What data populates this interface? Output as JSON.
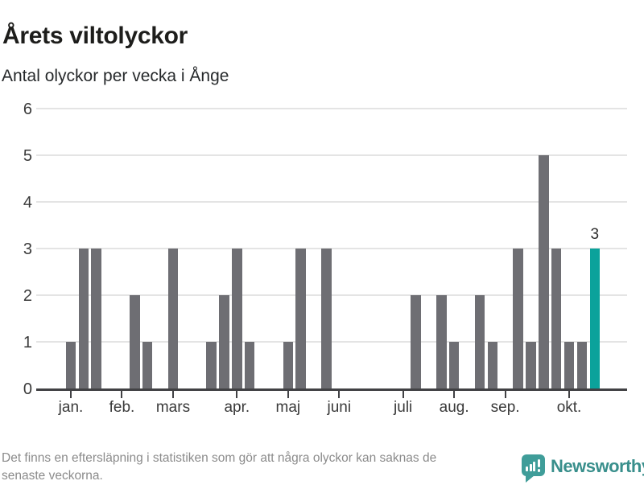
{
  "header": {
    "title": "Årets viltolyckor",
    "subtitle": "Antal olyckor per vecka i Ånge"
  },
  "chart_data": {
    "type": "bar",
    "title": "Årets viltolyckor",
    "subtitle": "Antal olyckor per vecka i Ånge",
    "x_unit": "vecka",
    "ylabel": "Antal olyckor",
    "ylim": [
      0,
      6
    ],
    "y_ticks": [
      0,
      1,
      2,
      3,
      4,
      5,
      6
    ],
    "grid": "horizontal",
    "values": [
      1,
      3,
      3,
      0,
      0,
      2,
      1,
      0,
      3,
      0,
      0,
      1,
      2,
      3,
      1,
      0,
      0,
      1,
      3,
      0,
      3,
      0,
      0,
      0,
      0,
      0,
      0,
      2,
      0,
      2,
      1,
      0,
      2,
      1,
      0,
      3,
      1,
      5,
      3,
      1,
      1,
      3
    ],
    "month_ticks": [
      {
        "label": "jan.",
        "week": 1
      },
      {
        "label": "feb.",
        "week": 5
      },
      {
        "label": "mars",
        "week": 9
      },
      {
        "label": "apr.",
        "week": 14
      },
      {
        "label": "maj",
        "week": 18
      },
      {
        "label": "juni",
        "week": 22
      },
      {
        "label": "juli",
        "week": 27
      },
      {
        "label": "aug.",
        "week": 31
      },
      {
        "label": "sep.",
        "week": 35
      },
      {
        "label": "okt.",
        "week": 40
      }
    ],
    "highlight_last": true,
    "last_value_label": "3",
    "colors": {
      "bar": "#6e6e73",
      "highlight": "#0ba29b",
      "grid": "#e4e4e4",
      "axis": "#414144"
    }
  },
  "footer": {
    "note": "Det finns en eftersläpning i statistiken som gör att några olyckor kan saknas de\nsenaste veckorna.",
    "brand": "Newsworthy"
  }
}
